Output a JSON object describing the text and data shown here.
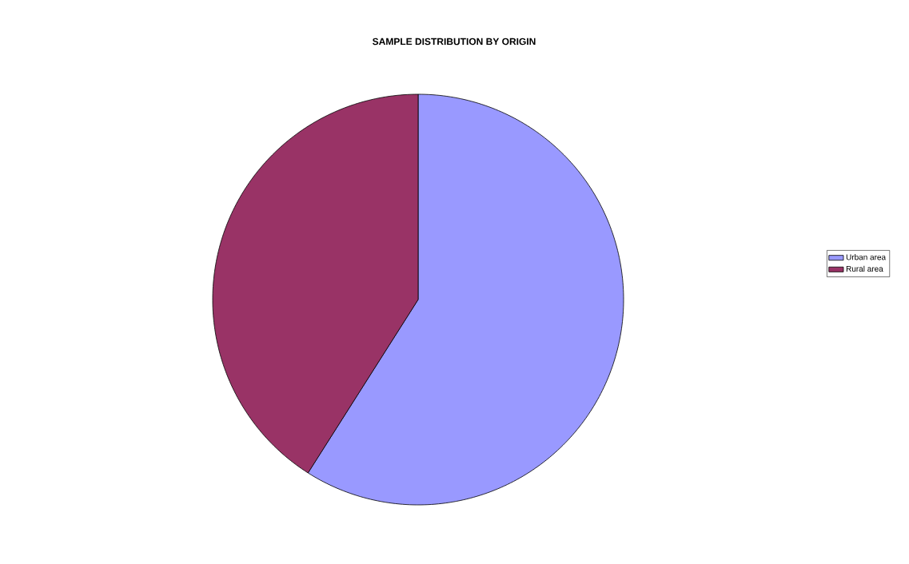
{
  "chart_data": {
    "type": "pie",
    "title": "SAMPLE DISTRIBUTION BY ORIGIN",
    "categories": [
      "Urban area",
      "Rural area"
    ],
    "values": [
      59,
      41
    ],
    "colors": [
      "#9999ff",
      "#993366"
    ],
    "legend": "right"
  }
}
